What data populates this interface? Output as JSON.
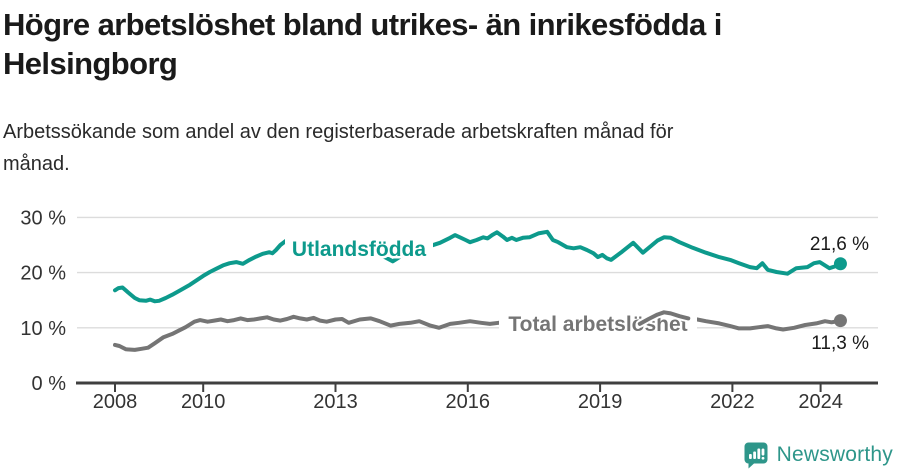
{
  "header": {
    "title_lines": [
      "Högre arbetslöshet bland utrikes- än inrikesfödda i",
      "Helsingborg"
    ],
    "subtitle_lines": [
      "Arbetssökande som andel av den registerbaserade arbetskraften månad för",
      "månad."
    ]
  },
  "footer": {
    "brand": "Newsworthy",
    "brand_color": "#2e968a",
    "brand_icon": "speech-bubble-bar-chart-icon"
  },
  "colors": {
    "series_foreign_born": "#0d9a8c",
    "series_total": "#757575",
    "grid_line": "#dcdcdc",
    "axis_line": "#3f3f3f",
    "tick_label": "#333333",
    "end_value_label": "#1a1a1a"
  },
  "chart_data": {
    "type": "line",
    "title": "Högre arbetslöshet bland utrikes- än inrikesfödda i Helsingborg",
    "subtitle": "Arbetssökande som andel av den registerbaserade arbetskraften månad för månad.",
    "xlabel": "",
    "ylabel": "",
    "x_domain": [
      2008,
      2024.45
    ],
    "y_domain": [
      0,
      30
    ],
    "grid": "horizontal",
    "legend_position": "inline-series-labels",
    "x_ticks": [
      {
        "v": 2008,
        "label": "2008"
      },
      {
        "v": 2010,
        "label": "2010"
      },
      {
        "v": 2013,
        "label": "2013"
      },
      {
        "v": 2016,
        "label": "2016"
      },
      {
        "v": 2019,
        "label": "2019"
      },
      {
        "v": 2022,
        "label": "2022"
      },
      {
        "v": 2024,
        "label": "2024"
      }
    ],
    "y_ticks": [
      {
        "v": 0,
        "label": "0 %"
      },
      {
        "v": 10,
        "label": "10 %"
      },
      {
        "v": 20,
        "label": "20 %"
      },
      {
        "v": 30,
        "label": "30 %"
      }
    ],
    "series": [
      {
        "name": "Utlandsfödda",
        "color": "#0d9a8c",
        "end_value": 21.6,
        "end_label": "21,6 %",
        "points": [
          [
            2008.0,
            16.8
          ],
          [
            2008.08,
            17.2
          ],
          [
            2008.17,
            17.3
          ],
          [
            2008.3,
            16.4
          ],
          [
            2008.45,
            15.4
          ],
          [
            2008.55,
            15.0
          ],
          [
            2008.7,
            14.9
          ],
          [
            2008.8,
            15.1
          ],
          [
            2008.9,
            14.8
          ],
          [
            2009.0,
            14.9
          ],
          [
            2009.15,
            15.4
          ],
          [
            2009.3,
            16.0
          ],
          [
            2009.5,
            16.9
          ],
          [
            2009.7,
            17.8
          ],
          [
            2009.85,
            18.6
          ],
          [
            2010.0,
            19.4
          ],
          [
            2010.15,
            20.1
          ],
          [
            2010.3,
            20.7
          ],
          [
            2010.45,
            21.3
          ],
          [
            2010.6,
            21.7
          ],
          [
            2010.75,
            21.9
          ],
          [
            2010.9,
            21.6
          ],
          [
            2011.05,
            22.3
          ],
          [
            2011.2,
            22.9
          ],
          [
            2011.35,
            23.4
          ],
          [
            2011.5,
            23.7
          ],
          [
            2011.57,
            23.5
          ],
          [
            2011.65,
            24.1
          ],
          [
            2011.75,
            25.0
          ],
          [
            2011.9,
            25.9
          ],
          [
            2012.0,
            26.4
          ],
          [
            2012.3,
            26.0
          ],
          [
            2012.7,
            25.3
          ],
          [
            2013.0,
            24.9
          ],
          [
            2013.4,
            24.3
          ],
          [
            2013.8,
            23.7
          ],
          [
            2014.05,
            23.1
          ],
          [
            2014.3,
            22.05
          ],
          [
            2014.55,
            23.3
          ],
          [
            2014.8,
            24.1
          ],
          [
            2015.1,
            24.7
          ],
          [
            2015.37,
            25.4
          ],
          [
            2015.6,
            26.3
          ],
          [
            2015.71,
            26.8
          ],
          [
            2015.82,
            26.4
          ],
          [
            2015.95,
            25.9
          ],
          [
            2016.05,
            25.5
          ],
          [
            2016.2,
            25.9
          ],
          [
            2016.35,
            26.4
          ],
          [
            2016.45,
            26.2
          ],
          [
            2016.55,
            26.8
          ],
          [
            2016.66,
            27.3
          ],
          [
            2016.8,
            26.5
          ],
          [
            2016.89,
            25.9
          ],
          [
            2017.0,
            26.3
          ],
          [
            2017.1,
            25.9
          ],
          [
            2017.25,
            26.3
          ],
          [
            2017.4,
            26.4
          ],
          [
            2017.6,
            27.1
          ],
          [
            2017.8,
            27.4
          ],
          [
            2017.93,
            25.9
          ],
          [
            2018.05,
            25.5
          ],
          [
            2018.25,
            24.6
          ],
          [
            2018.4,
            24.4
          ],
          [
            2018.55,
            24.6
          ],
          [
            2018.7,
            24.1
          ],
          [
            2018.85,
            23.5
          ],
          [
            2018.95,
            22.8
          ],
          [
            2019.05,
            23.2
          ],
          [
            2019.15,
            22.6
          ],
          [
            2019.25,
            22.3
          ],
          [
            2019.5,
            23.8
          ],
          [
            2019.75,
            25.4
          ],
          [
            2019.97,
            23.6
          ],
          [
            2020.15,
            24.8
          ],
          [
            2020.3,
            25.8
          ],
          [
            2020.45,
            26.4
          ],
          [
            2020.6,
            26.3
          ],
          [
            2020.8,
            25.5
          ],
          [
            2021.1,
            24.5
          ],
          [
            2021.4,
            23.6
          ],
          [
            2021.7,
            22.8
          ],
          [
            2021.95,
            22.3
          ],
          [
            2022.15,
            21.7
          ],
          [
            2022.4,
            21.0
          ],
          [
            2022.55,
            20.8
          ],
          [
            2022.68,
            21.7
          ],
          [
            2022.8,
            20.5
          ],
          [
            2023.0,
            20.1
          ],
          [
            2023.25,
            19.8
          ],
          [
            2023.45,
            20.8
          ],
          [
            2023.7,
            21.0
          ],
          [
            2023.85,
            21.7
          ],
          [
            2023.98,
            21.9
          ],
          [
            2024.2,
            20.8
          ],
          [
            2024.32,
            21.1
          ],
          [
            2024.45,
            21.6
          ]
        ]
      },
      {
        "name": "Total arbetslöshet",
        "color": "#757575",
        "end_value": 11.3,
        "end_label": "11,3 %",
        "points": [
          [
            2008.0,
            6.9
          ],
          [
            2008.1,
            6.7
          ],
          [
            2008.25,
            6.1
          ],
          [
            2008.45,
            6.0
          ],
          [
            2008.6,
            6.2
          ],
          [
            2008.75,
            6.4
          ],
          [
            2008.9,
            7.2
          ],
          [
            2009.1,
            8.3
          ],
          [
            2009.3,
            8.9
          ],
          [
            2009.45,
            9.5
          ],
          [
            2009.6,
            10.1
          ],
          [
            2009.8,
            11.1
          ],
          [
            2009.93,
            11.4
          ],
          [
            2010.1,
            11.1
          ],
          [
            2010.25,
            11.3
          ],
          [
            2010.4,
            11.5
          ],
          [
            2010.55,
            11.2
          ],
          [
            2010.7,
            11.4
          ],
          [
            2010.85,
            11.7
          ],
          [
            2011.0,
            11.4
          ],
          [
            2011.15,
            11.5
          ],
          [
            2011.3,
            11.7
          ],
          [
            2011.45,
            11.9
          ],
          [
            2011.6,
            11.5
          ],
          [
            2011.75,
            11.3
          ],
          [
            2011.9,
            11.6
          ],
          [
            2012.05,
            12.0
          ],
          [
            2012.2,
            11.7
          ],
          [
            2012.35,
            11.5
          ],
          [
            2012.5,
            11.8
          ],
          [
            2012.65,
            11.3
          ],
          [
            2012.8,
            11.1
          ],
          [
            2013.0,
            11.5
          ],
          [
            2013.15,
            11.6
          ],
          [
            2013.3,
            10.9
          ],
          [
            2013.55,
            11.5
          ],
          [
            2013.8,
            11.7
          ],
          [
            2014.0,
            11.2
          ],
          [
            2014.25,
            10.4
          ],
          [
            2014.45,
            10.7
          ],
          [
            2014.7,
            10.9
          ],
          [
            2014.9,
            11.2
          ],
          [
            2015.15,
            10.4
          ],
          [
            2015.35,
            10.0
          ],
          [
            2015.6,
            10.7
          ],
          [
            2015.8,
            10.9
          ],
          [
            2016.05,
            11.2
          ],
          [
            2016.3,
            10.9
          ],
          [
            2016.5,
            10.7
          ],
          [
            2016.7,
            10.9
          ],
          [
            2017.0,
            11.0
          ],
          [
            2017.3,
            10.8
          ],
          [
            2017.6,
            10.6
          ],
          [
            2018.0,
            10.4
          ],
          [
            2018.4,
            10.3
          ],
          [
            2018.8,
            10.2
          ],
          [
            2019.2,
            10.3
          ],
          [
            2019.6,
            10.4
          ],
          [
            2019.9,
            10.7
          ],
          [
            2020.1,
            11.6
          ],
          [
            2020.3,
            12.4
          ],
          [
            2020.45,
            12.8
          ],
          [
            2020.6,
            12.6
          ],
          [
            2020.8,
            12.1
          ],
          [
            2021.0,
            11.7
          ],
          [
            2021.15,
            11.6
          ],
          [
            2021.4,
            11.2
          ],
          [
            2021.7,
            10.8
          ],
          [
            2021.95,
            10.3
          ],
          [
            2022.15,
            9.9
          ],
          [
            2022.4,
            9.9
          ],
          [
            2022.6,
            10.1
          ],
          [
            2022.8,
            10.3
          ],
          [
            2023.0,
            9.9
          ],
          [
            2023.15,
            9.7
          ],
          [
            2023.4,
            10.0
          ],
          [
            2023.65,
            10.5
          ],
          [
            2023.9,
            10.8
          ],
          [
            2024.1,
            11.2
          ],
          [
            2024.25,
            11.0
          ],
          [
            2024.45,
            11.3
          ]
        ]
      }
    ]
  }
}
